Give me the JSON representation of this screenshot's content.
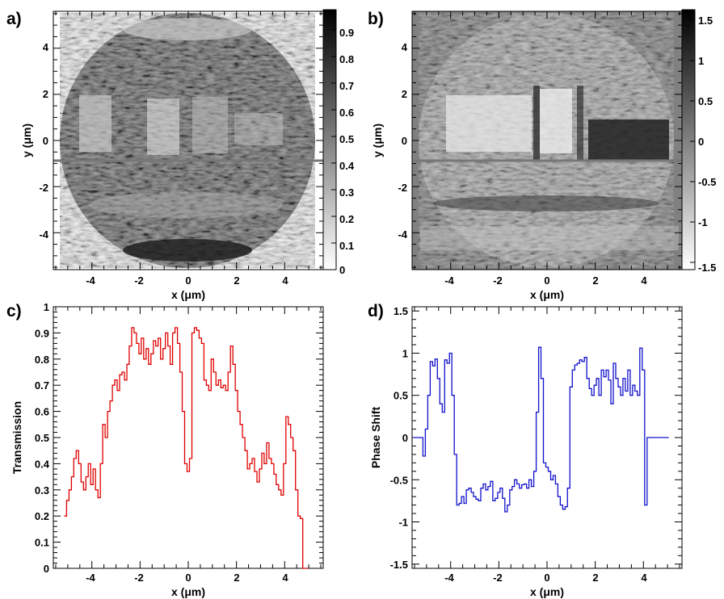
{
  "panels": {
    "a": {
      "label": "a)",
      "xlabel": "x (μm)",
      "ylabel": "y (μm)",
      "x_ticks": [
        "-4",
        "-2",
        "0",
        "2",
        "4"
      ],
      "y_ticks": [
        "4",
        "2",
        "0",
        "-2",
        "-4"
      ],
      "colorbar_ticks": [
        "0.9",
        "0.8",
        "0.7",
        "0.6",
        "0.5",
        "0.4",
        "0.3",
        "0.2",
        "0.1",
        "0"
      ]
    },
    "b": {
      "label": "b)",
      "xlabel": "x (μm)",
      "ylabel": "y (μm)",
      "x_ticks": [
        "-4",
        "-2",
        "0",
        "2",
        "4"
      ],
      "y_ticks": [
        "4",
        "2",
        "0",
        "-2",
        "-4"
      ],
      "colorbar_ticks": [
        "1.5",
        "1",
        "0.5",
        "0",
        "-0.5",
        "-1",
        "-1.5"
      ]
    },
    "c": {
      "label": "c)",
      "xlabel": "x (μm)",
      "ylabel": "Transmission",
      "x_ticks": [
        "-4",
        "-2",
        "0",
        "2",
        "4"
      ],
      "y_ticks": [
        "1",
        "0.9",
        "0.8",
        "0.7",
        "0.6",
        "0.5",
        "0.4",
        "0.3",
        "0.2",
        "0.1",
        "0"
      ]
    },
    "d": {
      "label": "d)",
      "xlabel": "x (μm)",
      "ylabel": "Phase Shift",
      "x_ticks": [
        "-4",
        "-2",
        "0",
        "2",
        "4"
      ],
      "y_ticks": [
        "1.5",
        "1",
        "0.5",
        "0",
        "-0.5",
        "-1",
        "-1.5"
      ]
    }
  },
  "chart_data": [
    {
      "type": "heatmap",
      "panel": "a",
      "description_values": "grayscale transmission map of a circular region of radius ~5.5 μm; darker = higher transmission",
      "xlim": [
        -5.6,
        5.6
      ],
      "ylim": [
        -5.6,
        5.6
      ],
      "zlim": [
        0,
        0.97
      ],
      "colorscale": "white-to-black",
      "cut_line_y": -0.9
    },
    {
      "type": "heatmap",
      "panel": "b",
      "description_values": "grayscale phase-shift map of a circular region; darker = larger phase shift",
      "xlim": [
        -5.6,
        5.6
      ],
      "ylim": [
        -5.6,
        5.6
      ],
      "zlim": [
        -1.6,
        1.6
      ],
      "colorscale": "white-to-black",
      "cut_line_y": -0.9
    },
    {
      "type": "line",
      "panel": "c",
      "style": "step",
      "color": "#e00000",
      "xlim": [
        -5.6,
        5.6
      ],
      "ylim": [
        0,
        1.0
      ],
      "x": [
        -5.1,
        -5.0,
        -4.9,
        -4.8,
        -4.7,
        -4.6,
        -4.5,
        -4.4,
        -4.3,
        -4.2,
        -4.1,
        -4.0,
        -3.9,
        -3.8,
        -3.7,
        -3.6,
        -3.5,
        -3.4,
        -3.3,
        -3.2,
        -3.1,
        -3.0,
        -2.9,
        -2.8,
        -2.7,
        -2.6,
        -2.5,
        -2.4,
        -2.3,
        -2.2,
        -2.1,
        -2.0,
        -1.9,
        -1.8,
        -1.7,
        -1.6,
        -1.5,
        -1.4,
        -1.3,
        -1.2,
        -1.1,
        -1.0,
        -0.9,
        -0.8,
        -0.7,
        -0.6,
        -0.5,
        -0.4,
        -0.3,
        -0.2,
        -0.1,
        0.0,
        0.1,
        0.2,
        0.3,
        0.4,
        0.5,
        0.6,
        0.7,
        0.8,
        0.9,
        1.0,
        1.1,
        1.2,
        1.3,
        1.4,
        1.5,
        1.6,
        1.7,
        1.8,
        1.9,
        2.0,
        2.1,
        2.2,
        2.3,
        2.4,
        2.5,
        2.6,
        2.7,
        2.8,
        2.9,
        3.0,
        3.1,
        3.2,
        3.3,
        3.4,
        3.5,
        3.6,
        3.7,
        3.8,
        3.9,
        4.0,
        4.1,
        4.2,
        4.3,
        4.4,
        4.5,
        4.6,
        4.7,
        4.8,
        4.9
      ],
      "values": [
        0.2,
        0.26,
        0.3,
        0.35,
        0.42,
        0.45,
        0.4,
        0.33,
        0.3,
        0.35,
        0.4,
        0.32,
        0.38,
        0.3,
        0.27,
        0.4,
        0.55,
        0.5,
        0.6,
        0.64,
        0.7,
        0.72,
        0.68,
        0.74,
        0.75,
        0.72,
        0.78,
        0.85,
        0.92,
        0.9,
        0.86,
        0.82,
        0.88,
        0.8,
        0.84,
        0.78,
        0.82,
        0.87,
        0.85,
        0.88,
        0.8,
        0.84,
        0.9,
        0.85,
        0.78,
        0.9,
        0.92,
        0.86,
        0.75,
        0.6,
        0.4,
        0.37,
        0.42,
        0.9,
        0.92,
        0.91,
        0.88,
        0.86,
        0.72,
        0.7,
        0.68,
        0.8,
        0.75,
        0.7,
        0.72,
        0.69,
        0.7,
        0.68,
        0.75,
        0.85,
        0.78,
        0.68,
        0.6,
        0.55,
        0.5,
        0.45,
        0.38,
        0.4,
        0.42,
        0.37,
        0.33,
        0.38,
        0.44,
        0.4,
        0.48,
        0.42,
        0.4,
        0.36,
        0.32,
        0.3,
        0.28,
        0.4,
        0.58,
        0.55,
        0.5,
        0.45,
        0.3,
        0.2,
        0.19,
        0.0,
        0.0
      ]
    },
    {
      "type": "line",
      "panel": "d",
      "style": "step",
      "color": "#1010cc",
      "xlim": [
        -5.6,
        5.6
      ],
      "ylim": [
        -1.55,
        1.55
      ],
      "x": [
        -5.5,
        -5.2,
        -5.1,
        -5.0,
        -4.9,
        -4.8,
        -4.7,
        -4.6,
        -4.5,
        -4.4,
        -4.3,
        -4.2,
        -4.1,
        -4.0,
        -3.9,
        -3.8,
        -3.7,
        -3.6,
        -3.5,
        -3.4,
        -3.3,
        -3.2,
        -3.1,
        -3.0,
        -2.9,
        -2.8,
        -2.7,
        -2.6,
        -2.5,
        -2.4,
        -2.3,
        -2.2,
        -2.1,
        -2.0,
        -1.9,
        -1.8,
        -1.7,
        -1.6,
        -1.5,
        -1.4,
        -1.3,
        -1.2,
        -1.1,
        -1.0,
        -0.9,
        -0.8,
        -0.7,
        -0.6,
        -0.5,
        -0.4,
        -0.3,
        -0.2,
        -0.1,
        0.0,
        0.1,
        0.2,
        0.3,
        0.4,
        0.5,
        0.6,
        0.7,
        0.8,
        0.9,
        1.0,
        1.1,
        1.2,
        1.3,
        1.4,
        1.5,
        1.6,
        1.7,
        1.8,
        1.9,
        2.0,
        2.1,
        2.2,
        2.3,
        2.4,
        2.5,
        2.6,
        2.7,
        2.8,
        2.9,
        3.0,
        3.1,
        3.2,
        3.3,
        3.4,
        3.5,
        3.6,
        3.7,
        3.8,
        3.9,
        4.0,
        4.1,
        4.2,
        4.3,
        4.4,
        4.5,
        4.6,
        4.7,
        4.8,
        4.9,
        5.0
      ],
      "values": [
        0.0,
        0.0,
        -0.22,
        0.1,
        0.5,
        0.9,
        0.85,
        0.93,
        0.7,
        0.4,
        0.3,
        0.92,
        0.88,
        1.0,
        0.5,
        -0.2,
        -0.8,
        -0.78,
        -0.7,
        -0.78,
        -0.62,
        -0.6,
        -0.65,
        -0.7,
        -0.73,
        -0.75,
        -0.6,
        -0.55,
        -0.62,
        -0.58,
        -0.52,
        -0.75,
        -0.72,
        -0.65,
        -0.6,
        -0.72,
        -0.88,
        -0.8,
        -0.62,
        -0.58,
        -0.5,
        -0.55,
        -0.6,
        -0.56,
        -0.55,
        -0.6,
        -0.5,
        -0.58,
        -0.4,
        0.3,
        1.07,
        0.7,
        -0.3,
        -0.35,
        -0.4,
        -0.5,
        -0.45,
        -0.55,
        -0.7,
        -0.8,
        -0.85,
        -0.82,
        -0.6,
        0.6,
        0.8,
        0.86,
        0.88,
        0.92,
        0.9,
        0.95,
        0.7,
        0.58,
        0.5,
        0.62,
        0.7,
        0.5,
        0.8,
        0.72,
        0.8,
        0.68,
        0.4,
        0.88,
        0.7,
        0.6,
        0.5,
        0.7,
        0.55,
        0.8,
        0.5,
        0.62,
        0.55,
        0.5,
        1.06,
        0.8,
        -0.8,
        0.0,
        0.0,
        0.0,
        0.0,
        0.0,
        0.0,
        0.0,
        0.0,
        0.0
      ]
    }
  ]
}
